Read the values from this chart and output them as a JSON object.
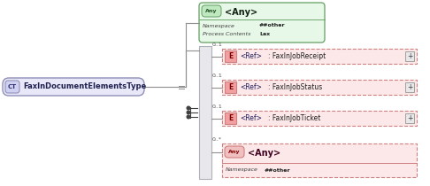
{
  "bg_color": "#ffffff",
  "ct_text": "FaxInDocumentElementsType",
  "ct_box_color": "#e8e8f8",
  "ct_border_color": "#9090b8",
  "any_top_text": "<Any>",
  "any_top_bg": "#e8f8e8",
  "any_top_border": "#70a870",
  "any_top_ns_label": "Namespace",
  "any_top_ns_value": "##other",
  "any_top_pc_label": "Process Contents",
  "any_top_pc_value": "Lax",
  "seq_bar_color": "#e8e8ec",
  "seq_bar_border": "#b0b0b8",
  "elements": [
    {
      "ref": "<Ref>",
      "name": ": FaxInJobReceipt",
      "mult": "0..1"
    },
    {
      "ref": "<Ref>",
      "name": ": FaxInJobStatus",
      "mult": "0..1"
    },
    {
      "ref": "<Ref>",
      "name": ": FaxInJobTicket",
      "mult": "0..1"
    }
  ],
  "any_bot_text": "<Any>",
  "any_bot_mult": "0..*",
  "any_bot_bg": "#fce8e8",
  "any_bot_border": "#d08080",
  "any_bot_ns_label": "Namespace",
  "any_bot_ns_value": "##other",
  "elem_bg": "#fce8e8",
  "elem_border": "#d08080",
  "line_color": "#909090",
  "connector_color": "#404040"
}
